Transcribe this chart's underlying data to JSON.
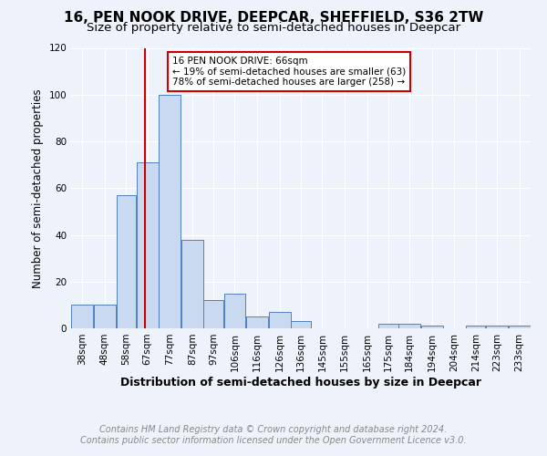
{
  "title": "16, PEN NOOK DRIVE, DEEPCAR, SHEFFIELD, S36 2TW",
  "subtitle": "Size of property relative to semi-detached houses in Deepcar",
  "xlabel": "Distribution of semi-detached houses by size in Deepcar",
  "ylabel": "Number of semi-detached properties",
  "bar_labels": [
    "38sqm",
    "48sqm",
    "58sqm",
    "67sqm",
    "77sqm",
    "87sqm",
    "97sqm",
    "106sqm",
    "116sqm",
    "126sqm",
    "136sqm",
    "145sqm",
    "155sqm",
    "165sqm",
    "175sqm",
    "184sqm",
    "194sqm",
    "204sqm",
    "214sqm",
    "223sqm",
    "233sqm"
  ],
  "bar_values": [
    10,
    10,
    57,
    71,
    100,
    38,
    12,
    15,
    5,
    7,
    3,
    0,
    0,
    0,
    2,
    2,
    1,
    0,
    1,
    1,
    1
  ],
  "bar_edges": [
    33,
    43,
    53,
    62,
    72,
    82,
    92,
    101,
    111,
    121,
    131,
    140,
    150,
    160,
    170,
    179,
    189,
    199,
    209,
    218,
    228,
    238
  ],
  "property_line_x": 66,
  "bar_color": "#c9d9f0",
  "bar_edgecolor": "#5080c0",
  "property_line_color": "#cc0000",
  "annotation_text": "16 PEN NOOK DRIVE: 66sqm\n← 19% of semi-detached houses are smaller (63)\n78% of semi-detached houses are larger (258) →",
  "annotation_box_facecolor": "#ffffff",
  "annotation_box_edgecolor": "#cc0000",
  "ylim": [
    0,
    120
  ],
  "yticks": [
    0,
    20,
    40,
    60,
    80,
    100,
    120
  ],
  "footer_line1": "Contains HM Land Registry data © Crown copyright and database right 2024.",
  "footer_line2": "Contains public sector information licensed under the Open Government Licence v3.0.",
  "background_color": "#eef2fb",
  "grid_color": "#ffffff",
  "title_fontsize": 11,
  "subtitle_fontsize": 9.5,
  "axis_label_fontsize": 9,
  "tick_fontsize": 7.5,
  "footer_fontsize": 7,
  "ylabel_fontsize": 8.5
}
